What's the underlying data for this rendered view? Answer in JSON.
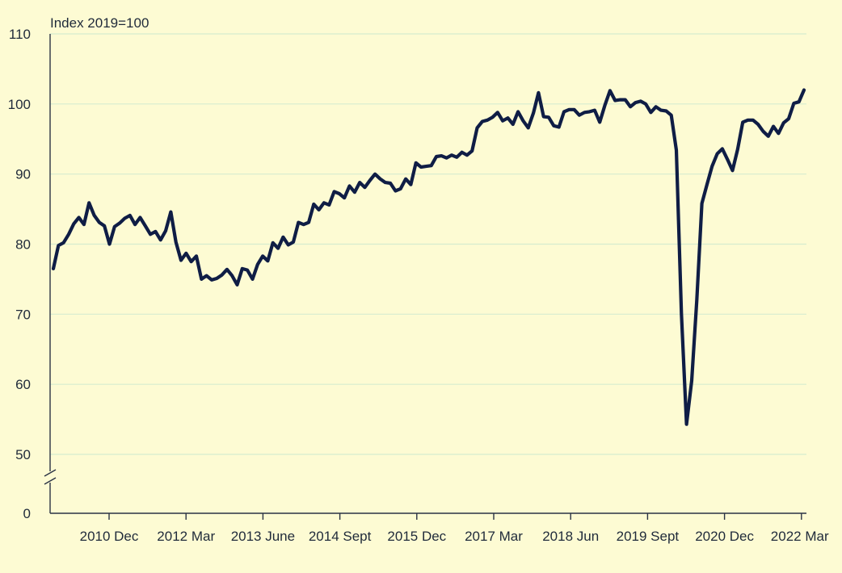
{
  "chart_data": {
    "type": "line",
    "unit_label": "Index 2019=100",
    "y_ticks": [
      0,
      50,
      60,
      70,
      80,
      90,
      100,
      110
    ],
    "y_axis_break": true,
    "grid": true,
    "x_tick_labels": [
      "2010 Dec",
      "2012 Mar",
      "2013 June",
      "2014 Sept",
      "2015 Dec",
      "2017 Mar",
      "2018 Jun",
      "2019 Sept",
      "2020 Dec",
      "2022 Mar"
    ],
    "line_color": "#0f1d45",
    "series": [
      {
        "values": [
          76.5,
          79.8,
          80.2,
          81.4,
          82.9,
          83.8,
          82.8,
          85.9,
          84.1,
          83.1,
          82.6,
          80.0,
          82.5,
          83.0,
          83.7,
          84.1,
          82.8,
          83.8,
          82.6,
          81.4,
          81.8,
          80.6,
          81.9,
          84.6,
          80.3,
          77.7,
          78.7,
          77.5,
          78.3,
          75.0,
          75.5,
          74.9,
          75.1,
          75.6,
          76.4,
          75.5,
          74.2,
          76.5,
          76.3,
          75.0,
          77.1,
          78.3,
          77.6,
          80.2,
          79.4,
          81.0,
          79.9,
          80.3,
          83.1,
          82.8,
          83.1,
          85.7,
          84.9,
          85.9,
          85.6,
          87.5,
          87.2,
          86.6,
          88.3,
          87.4,
          88.8,
          88.1,
          89.1,
          90.0,
          89.3,
          88.8,
          88.7,
          87.6,
          87.9,
          89.3,
          88.5,
          91.6,
          91.0,
          91.1,
          91.2,
          92.5,
          92.6,
          92.3,
          92.7,
          92.4,
          93.1,
          92.7,
          93.3,
          96.6,
          97.5,
          97.7,
          98.1,
          98.8,
          97.6,
          98.0,
          97.1,
          98.9,
          97.6,
          96.6,
          98.7,
          101.6,
          98.2,
          98.1,
          96.9,
          96.7,
          98.9,
          99.2,
          99.2,
          98.4,
          98.8,
          98.9,
          99.1,
          97.4,
          99.8,
          101.9,
          100.5,
          100.6,
          100.6,
          99.6,
          100.2,
          100.4,
          100.0,
          98.8,
          99.6,
          99.1,
          99.0,
          98.4,
          93.4,
          70.0,
          54.3,
          60.5,
          72.0,
          85.8,
          88.5,
          91.1,
          92.9,
          93.6,
          92.1,
          90.5,
          93.5,
          97.4,
          97.7,
          97.7,
          97.1,
          96.1,
          95.4,
          96.8,
          95.8,
          97.3,
          97.9,
          100.1,
          100.3,
          102.0
        ]
      }
    ]
  }
}
